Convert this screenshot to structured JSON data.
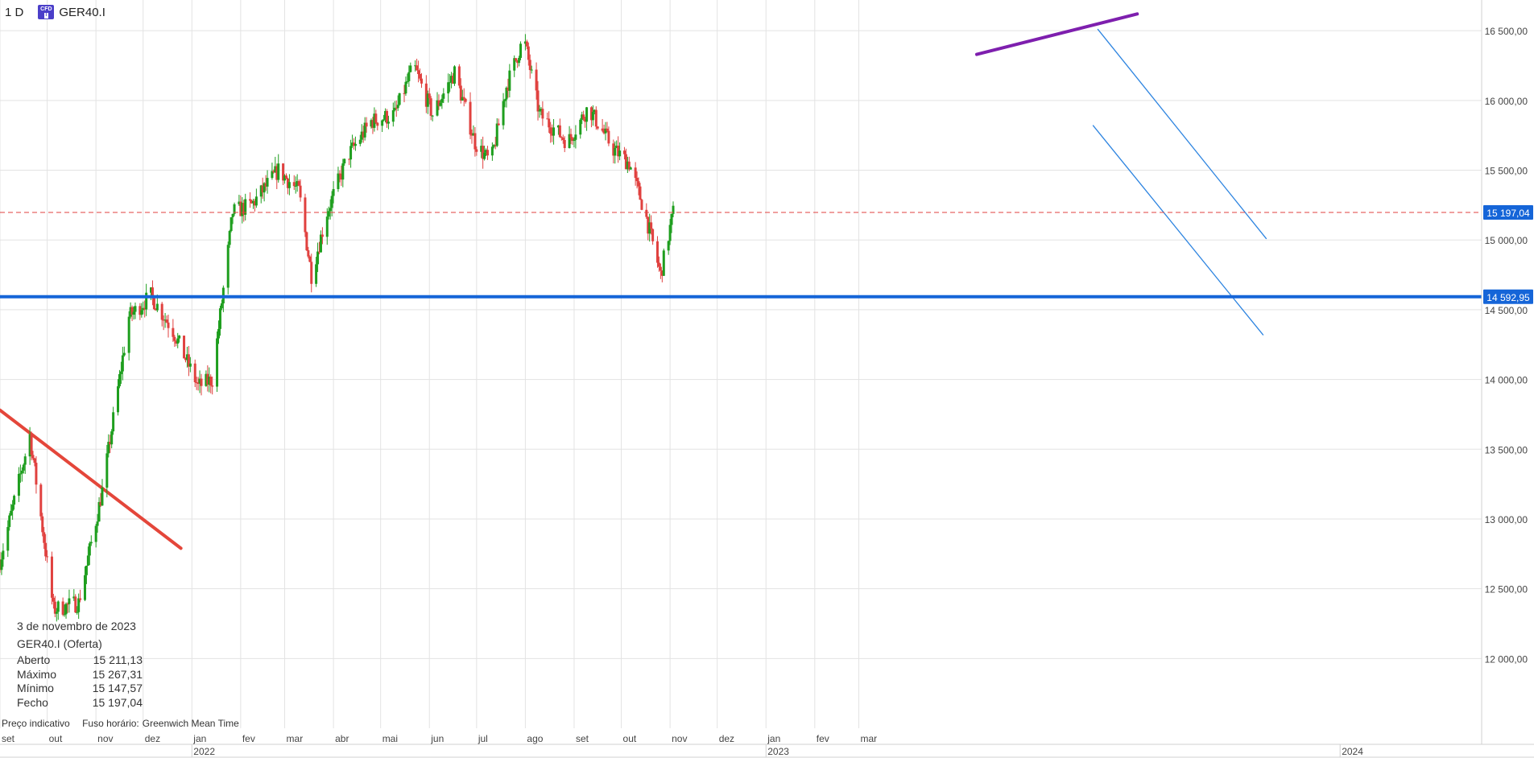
{
  "header": {
    "timeframe": "1 D",
    "symbol": "GER40.I",
    "badge_top": "CFD",
    "badge_bottom": "I"
  },
  "info_panel": {
    "date": "3 de novembro de 2023",
    "instrument": "GER40.I (Oferta)",
    "rows": [
      {
        "label": "Aberto",
        "value": "15 211,13"
      },
      {
        "label": "Máximo",
        "value": "15 267,31"
      },
      {
        "label": "Mínimo",
        "value": "15 147,57"
      },
      {
        "label": "Fecho",
        "value": "15 197,04"
      }
    ]
  },
  "footer": {
    "price_note": "Preço indicativo",
    "tz_label": "Fuso horário:",
    "tz_value": "Greenwich Mean Time"
  },
  "colors": {
    "up": "#1e9e1e",
    "down": "#e0413f",
    "support": "#1565d8",
    "resistance": "#7e1fae",
    "downtrend": "#e4463a",
    "channel": "#2d84e0",
    "current_price": "#e0413f",
    "grid": "#e3e3e3"
  },
  "chart_data": {
    "type": "candlestick",
    "x_start": "2021-09-01",
    "x_end": "2024-03-31",
    "y_range": [
      11500,
      16720
    ],
    "grid": true,
    "y_ticks": [
      12000,
      12500,
      13000,
      13500,
      14000,
      14500,
      15000,
      15500,
      16000,
      16500
    ],
    "y_tick_labels": [
      "12 000,00",
      "12 500,00",
      "13 000,00",
      "13 500,00",
      "14 000,00",
      "14 500,00",
      "15 000,00",
      "15 500,00",
      "16 000,00",
      "16 500,00"
    ],
    "month_labels": [
      {
        "date": "2021-09-01",
        "label": "set"
      },
      {
        "date": "2021-10-01",
        "label": "out"
      },
      {
        "date": "2021-11-01",
        "label": "nov"
      },
      {
        "date": "2021-12-01",
        "label": "dez"
      },
      {
        "date": "2022-01-01",
        "label": "jan"
      },
      {
        "date": "2022-02-01",
        "label": "fev"
      },
      {
        "date": "2022-03-01",
        "label": "mar"
      },
      {
        "date": "2022-04-01",
        "label": "abr"
      },
      {
        "date": "2022-05-01",
        "label": "mai"
      },
      {
        "date": "2022-06-01",
        "label": "jun"
      },
      {
        "date": "2022-07-01",
        "label": "jul"
      },
      {
        "date": "2022-08-01",
        "label": "ago"
      },
      {
        "date": "2022-09-01",
        "label": "set"
      },
      {
        "date": "2022-10-01",
        "label": "out"
      },
      {
        "date": "2022-11-01",
        "label": "nov"
      },
      {
        "date": "2022-12-01",
        "label": "dez"
      },
      {
        "date": "2023-01-01",
        "label": "jan"
      },
      {
        "date": "2023-02-01",
        "label": "fev"
      },
      {
        "date": "2023-03-01",
        "label": "mar"
      }
    ],
    "year_labels": [
      {
        "date": "2022-01-01",
        "label": "2022"
      },
      {
        "date": "2023-01-01",
        "label": "2023"
      },
      {
        "date": "2024-01-01",
        "label": "2024"
      }
    ],
    "price_levels": [
      {
        "name": "current",
        "value": 15197.04,
        "label": "15 197,04",
        "style": "dashed"
      },
      {
        "name": "support",
        "value": 14592.95,
        "label": "14 592,95",
        "style": "solid"
      }
    ],
    "trendlines": [
      {
        "name": "resistance",
        "from": [
          "2023-05-15",
          16330
        ],
        "to": [
          "2023-08-25",
          16620
        ]
      },
      {
        "name": "downtrend",
        "from": [
          "2021-09-01",
          13780
        ],
        "to": [
          "2021-12-25",
          12790
        ]
      },
      {
        "name": "channel-upper",
        "from": [
          "2023-07-31",
          16510
        ],
        "to": [
          "2023-11-15",
          15010
        ]
      },
      {
        "name": "channel-lower",
        "from": [
          "2023-07-28",
          15820
        ],
        "to": [
          "2023-11-13",
          14320
        ]
      }
    ],
    "anchors": [
      [
        "2021-09-01",
        12700
      ],
      [
        "2021-09-20",
        13600
      ],
      [
        "2021-10-05",
        12350
      ],
      [
        "2021-10-21",
        12400
      ],
      [
        "2021-11-05",
        13200
      ],
      [
        "2021-11-22",
        14450
      ],
      [
        "2021-12-06",
        14600
      ],
      [
        "2021-12-20",
        14350
      ],
      [
        "2022-01-05",
        13950
      ],
      [
        "2022-01-14",
        14000
      ],
      [
        "2022-01-27",
        15200
      ],
      [
        "2022-02-08",
        15250
      ],
      [
        "2022-02-25",
        15500
      ],
      [
        "2022-03-10",
        15350
      ],
      [
        "2022-03-18",
        14750
      ],
      [
        "2022-03-28",
        15200
      ],
      [
        "2022-04-10",
        15600
      ],
      [
        "2022-04-25",
        15850
      ],
      [
        "2022-05-10",
        15900
      ],
      [
        "2022-05-22",
        16250
      ],
      [
        "2022-06-03",
        15900
      ],
      [
        "2022-06-17",
        16200
      ],
      [
        "2022-06-30",
        15700
      ],
      [
        "2022-07-10",
        15550
      ],
      [
        "2022-07-20",
        16100
      ],
      [
        "2022-07-31",
        16450
      ],
      [
        "2022-08-10",
        15900
      ],
      [
        "2022-08-28",
        15700
      ],
      [
        "2022-09-10",
        15950
      ],
      [
        "2022-09-26",
        15650
      ],
      [
        "2022-10-06",
        15550
      ],
      [
        "2022-10-16",
        15200
      ],
      [
        "2022-10-26",
        14750
      ],
      [
        "2022-11-03",
        15197
      ]
    ]
  }
}
